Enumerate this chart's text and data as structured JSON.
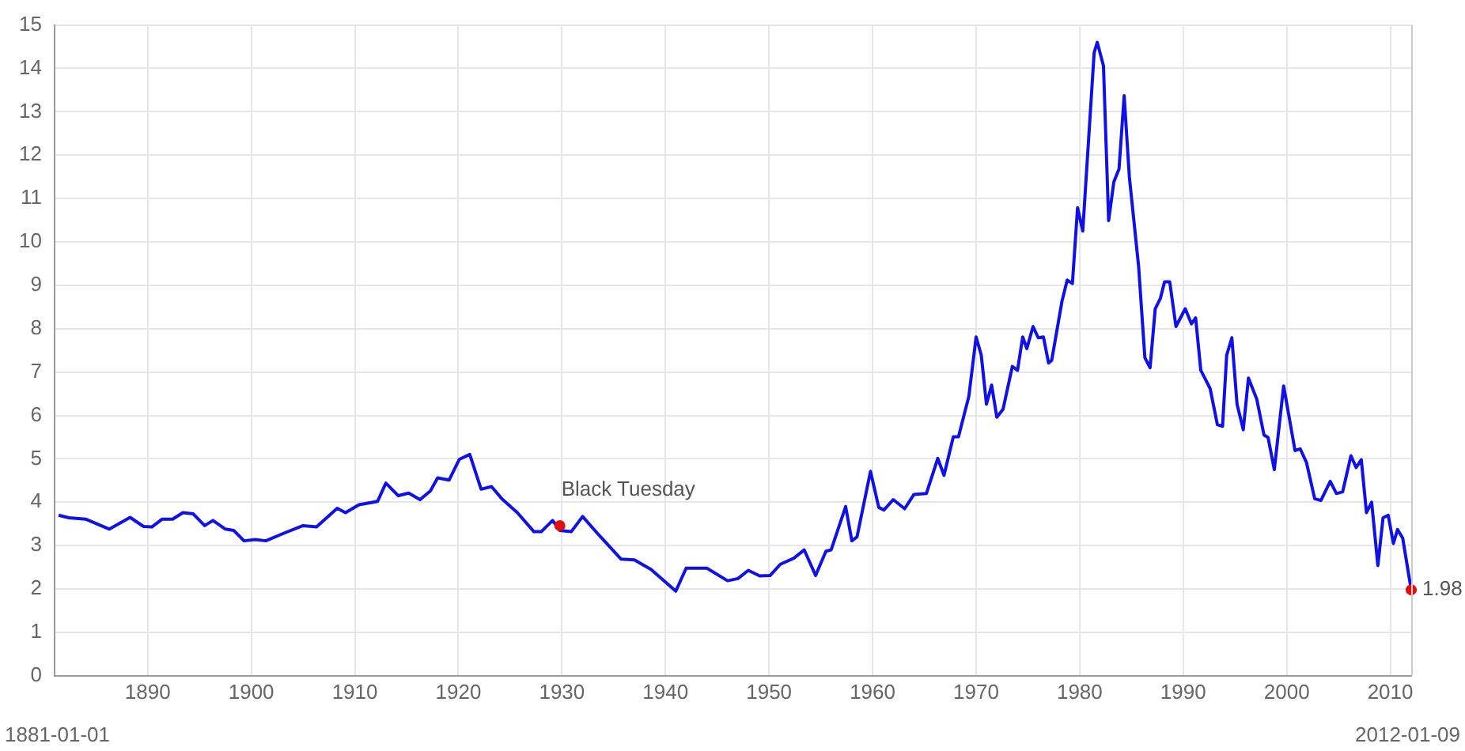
{
  "chart_data": {
    "type": "line",
    "annotations": [
      "1881-01-01",
      "2012-01-09",
      {
        "text": "Black Tuesday",
        "x": 1929.8,
        "y": 3.46
      },
      {
        "text": "1.98",
        "x": 2012.02,
        "y": 1.98
      }
    ],
    "xlim": [
      1881,
      2012.02
    ],
    "xticks": [
      1890,
      1900,
      1910,
      1920,
      1930,
      1940,
      1950,
      1960,
      1970,
      1980,
      1990,
      2000,
      2010
    ],
    "ylim": [
      0,
      15
    ],
    "yticks": [
      0,
      1,
      2,
      3,
      4,
      5,
      6,
      7,
      8,
      9,
      10,
      11,
      12,
      13,
      14,
      15
    ],
    "grid": true,
    "marker": "none",
    "line_style": "solid",
    "series": [
      {
        "color": "#1010e8",
        "x": [
          1881.4,
          1882.4,
          1884,
          1886.3,
          1888.3,
          1889.6,
          1890.4,
          1891.4,
          1892.4,
          1893.4,
          1894.4,
          1895.5,
          1896.3,
          1897.5,
          1898.3,
          1899.3,
          1900.4,
          1901.4,
          1903.2,
          1905,
          1906.3,
          1908.3,
          1909.1,
          1910.4,
          1912.2,
          1913,
          1914.2,
          1915.2,
          1916.3,
          1917.3,
          1918,
          1919.1,
          1920.1,
          1921.1,
          1922.2,
          1923.2,
          1924.2,
          1925.7,
          1927.3,
          1928,
          1929.1,
          1929.8,
          1930.9,
          1932,
          1933.4,
          1935.7,
          1937,
          1938.6,
          1941,
          1942,
          1944,
          1946,
          1947,
          1948,
          1949.1,
          1950.1,
          1951.1,
          1952.4,
          1953.4,
          1954.5,
          1955.5,
          1956,
          1957.4,
          1958,
          1958.5,
          1959.8,
          1960.6,
          1961.1,
          1962,
          1963.1,
          1964,
          1965.2,
          1966.3,
          1966.9,
          1967.8,
          1968.3,
          1969.3,
          1970,
          1970.5,
          1971,
          1971.5,
          1972,
          1972.6,
          1973.5,
          1974,
          1974.5,
          1974.9,
          1975.5,
          1976,
          1976.5,
          1977,
          1977.3,
          1978.3,
          1978.8,
          1979.3,
          1979.8,
          1980.3,
          1981.4,
          1981.7,
          1982.3,
          1982.8,
          1983.3,
          1983.8,
          1984.3,
          1984.8,
          1985.7,
          1986.3,
          1986.8,
          1987.3,
          1987.8,
          1988.2,
          1988.7,
          1989.3,
          1990.2,
          1990.8,
          1991.2,
          1991.7,
          1992.6,
          1993.3,
          1993.8,
          1994.2,
          1994.7,
          1995.2,
          1995.8,
          1996.3,
          1997.1,
          1997.8,
          1998.2,
          1998.8,
          1999.7,
          2000.8,
          2001.3,
          2001.9,
          2002.7,
          2003.3,
          2004.2,
          2004.8,
          2005.4,
          2006.2,
          2006.7,
          2007.2,
          2007.7,
          2008.2,
          2008.8,
          2009.3,
          2009.8,
          2010.3,
          2010.7,
          2011.2,
          2012.02
        ],
        "values": [
          3.7,
          3.64,
          3.61,
          3.38,
          3.65,
          3.44,
          3.43,
          3.61,
          3.61,
          3.76,
          3.73,
          3.46,
          3.58,
          3.38,
          3.35,
          3.11,
          3.14,
          3.11,
          3.29,
          3.46,
          3.43,
          3.86,
          3.76,
          3.94,
          4.02,
          4.44,
          4.15,
          4.21,
          4.06,
          4.26,
          4.56,
          4.51,
          4.99,
          5.1,
          4.3,
          4.36,
          4.08,
          3.76,
          3.32,
          3.32,
          3.58,
          3.35,
          3.32,
          3.67,
          3.29,
          2.69,
          2.67,
          2.45,
          1.95,
          2.48,
          2.48,
          2.19,
          2.24,
          2.43,
          2.3,
          2.31,
          2.57,
          2.71,
          2.9,
          2.31,
          2.87,
          2.9,
          3.9,
          3.11,
          3.2,
          4.71,
          3.88,
          3.82,
          4.06,
          3.85,
          4.18,
          4.2,
          5.01,
          4.62,
          5.51,
          5.51,
          6.44,
          7.81,
          7.39,
          6.26,
          6.7,
          5.96,
          6.14,
          7.13,
          7.04,
          7.81,
          7.54,
          8.05,
          7.79,
          7.81,
          7.21,
          7.27,
          8.64,
          9.12,
          9.04,
          10.79,
          10.25,
          14.36,
          14.6,
          14.06,
          10.49,
          11.38,
          11.68,
          13.37,
          11.5,
          9.42,
          7.33,
          7.1,
          8.46,
          8.7,
          9.08,
          9.08,
          8.05,
          8.46,
          8.11,
          8.25,
          7.04,
          6.62,
          5.79,
          5.75,
          7.39,
          7.79,
          6.26,
          5.67,
          6.86,
          6.38,
          5.55,
          5.49,
          4.75,
          6.68,
          5.19,
          5.23,
          4.92,
          4.08,
          4.04,
          4.48,
          4.2,
          4.24,
          5.07,
          4.8,
          4.98,
          3.76,
          4.0,
          2.54,
          3.64,
          3.7,
          3.05,
          3.37,
          3.17,
          1.98
        ]
      }
    ]
  }
}
